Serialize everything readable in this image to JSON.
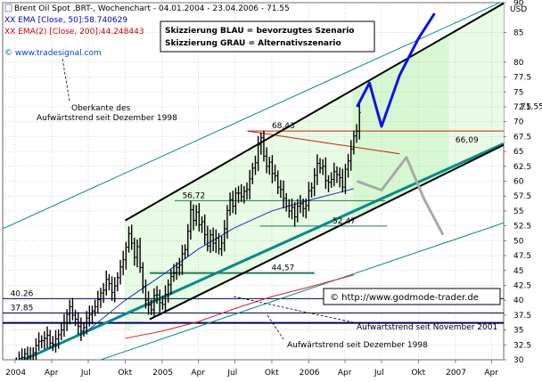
{
  "header": {
    "line1": "Brent Oil Spot ,BRT-, Wochenchart - 04.01.2004 - 23.04.2006 - 71.55",
    "line2": "XX EMA [Close, 50]:58.740629",
    "line3": "XX EMA(2) [Close, 200]:44.248443",
    "watermark": "© www.tradesignal.com"
  },
  "legend": {
    "blau": "Skizzierung BLAU = bevorzugtes Szenario",
    "grau": "Skizzierung GRAU = Alternativszenario"
  },
  "copyright": "© http://www.godmode-trader.de",
  "colors": {
    "background": "#ffffff",
    "channel_fill": "#e8fbe4",
    "scenario_fill": "#d6f8d0",
    "bars": "#000000",
    "ema50": "#2030c0",
    "ema200": "#e02020",
    "teal_trend": "#008b8b",
    "navy": "#000060",
    "darkgreen_line": "#1e7a58",
    "red_line": "#cc2200",
    "blue_scenario": "#1010ee",
    "grey_scenario": "#a8a8a8",
    "header_blue": "#0000cc",
    "header_red": "#cc0000",
    "watermark": "#0044cc"
  },
  "chart_data": {
    "type": "candlestick",
    "title": "Brent Oil Spot ,BRT-, Wochenchart - 04.01.2004 - 23.04.2006 - 71.55",
    "y_unit": "USD",
    "ylim": [
      30,
      90
    ],
    "xlim": [
      "2003-12-01",
      "2007-05-01"
    ],
    "x_ticks": [
      "2004",
      "Apr",
      "Jul",
      "Okt",
      "2005",
      "Apr",
      "Jul",
      "Okt",
      "2006",
      "Apr",
      "Jul",
      "Okt",
      "2007",
      "Apr"
    ],
    "y_ticks": [
      30,
      32.5,
      35,
      37.5,
      40,
      42.5,
      45,
      47.5,
      50,
      52.5,
      55,
      57.5,
      60,
      62.5,
      65,
      67.5,
      70,
      72.5,
      75,
      77.5,
      80,
      85,
      90
    ],
    "last_price": 71.55,
    "weekly_close": [
      29.5,
      30.2,
      30.4,
      31.0,
      30.6,
      30.0,
      31.2,
      32.4,
      33.1,
      33.2,
      33.6,
      34.1,
      32.8,
      32.6,
      33.5,
      34.2,
      35.0,
      36.2,
      37.6,
      38.9,
      37.5,
      36.8,
      35.6,
      34.8,
      35.4,
      37.0,
      37.6,
      38.2,
      38.9,
      40.1,
      41.2,
      41.7,
      43.5,
      42.8,
      41.3,
      42.4,
      43.8,
      45.6,
      46.8,
      48.9,
      51.2,
      49.6,
      47.2,
      49.0,
      45.5,
      42.3,
      40.0,
      39.2,
      38.4,
      40.8,
      40.9,
      39.6,
      39.3,
      41.0,
      42.6,
      44.0,
      44.6,
      45.5,
      45.9,
      47.8,
      48.5,
      51.6,
      55.2,
      53.4,
      54.8,
      52.7,
      53.2,
      51.0,
      49.1,
      51.0,
      49.6,
      50.4,
      48.6,
      49.6,
      52.0,
      55.1,
      56.9,
      55.8,
      58.0,
      58.0,
      57.4,
      58.3,
      58.6,
      60.4,
      62.2,
      63.1,
      66.1,
      67.3,
      64.2,
      62.5,
      63.2,
      61.3,
      60.9,
      59.0,
      58.6,
      57.1,
      55.8,
      55.0,
      55.6,
      54.0,
      55.8,
      56.2,
      55.4,
      55.9,
      58.4,
      58.9,
      61.0,
      63.0,
      62.2,
      62.5,
      60.1,
      59.8,
      60.3,
      61.6,
      61.1,
      60.6,
      59.0,
      62.0,
      63.4,
      65.4,
      67.6,
      68.4,
      71.55
    ],
    "ema50_points": [
      [
        "2004-07-01",
        35.0
      ],
      [
        "2004-10-01",
        40.0
      ],
      [
        "2005-01-01",
        44.2
      ],
      [
        "2005-04-01",
        48.6
      ],
      [
        "2005-07-01",
        52.2
      ],
      [
        "2005-10-01",
        55.0
      ],
      [
        "2006-01-01",
        56.8
      ],
      [
        "2006-04-23",
        58.74
      ]
    ],
    "ema200_points": [
      [
        "2004-10-01",
        33.6
      ],
      [
        "2005-01-01",
        34.8
      ],
      [
        "2005-04-01",
        36.4
      ],
      [
        "2005-07-01",
        38.6
      ],
      [
        "2005-10-01",
        40.6
      ],
      [
        "2006-01-01",
        42.2
      ],
      [
        "2006-04-23",
        44.25
      ]
    ],
    "levels": [
      {
        "value": 68.43,
        "label": "68,43"
      },
      {
        "value": 66.09,
        "label": "66,09"
      },
      {
        "value": 56.72,
        "label": "56,72"
      },
      {
        "value": 52.47,
        "label": "52,47"
      },
      {
        "value": 44.57,
        "label": "44,57"
      },
      {
        "value": 40.26,
        "label": "40.26"
      },
      {
        "value": 37.85,
        "label": "37.85"
      }
    ],
    "trendlines": [
      {
        "name": "Oberkante des Aufwärtstrend seit Dezember 1998",
        "from": [
          "2003-12-01",
          52.0
        ],
        "to": [
          "2007-05-01",
          90.3
        ]
      },
      {
        "name": "Aufwärtstrend seit Dezember 1998",
        "from": [
          "2003-12-01",
          28.4
        ],
        "to": [
          "2007-05-01",
          66.3
        ]
      },
      {
        "name": "Aufwärtstrend seit November 2001",
        "from": [
          "2004-06-01",
          28.6
        ],
        "to": [
          "2007-05-01",
          53.0
        ]
      },
      {
        "name": "Trendkanal oben",
        "from": [
          "2004-10-01",
          53.4
        ],
        "to": [
          "2007-05-01",
          89.9
        ]
      },
      {
        "name": "Trendkanal unten",
        "from": [
          "2004-12-01",
          36.8
        ],
        "to": [
          "2007-05-01",
          66.1
        ]
      }
    ],
    "scenario_blue": [
      [
        "2006-05-01",
        72.5
      ],
      [
        "2006-06-01",
        76.5
      ],
      [
        "2006-07-01",
        69.2
      ],
      [
        "2006-08-15",
        77.8
      ],
      [
        "2006-10-01",
        84.0
      ],
      [
        "2006-11-10",
        88.2
      ]
    ],
    "scenario_grey": [
      [
        "2006-05-01",
        60.0
      ],
      [
        "2006-07-01",
        58.5
      ],
      [
        "2006-09-01",
        64.0
      ],
      [
        "2006-10-15",
        57.0
      ],
      [
        "2006-12-01",
        51.0
      ]
    ],
    "annotations": [
      {
        "text": "Oberkante des",
        "anchor": "upper-left"
      },
      {
        "text": "Aufwärtstrend seit Dezember 1998",
        "anchor": "upper-left"
      },
      {
        "text": "Aufwärtstrend seit November 2001",
        "anchor": "bottom-right"
      },
      {
        "text": "Aufwärtstrend seit Dezember 1998",
        "anchor": "bottom-center"
      }
    ]
  }
}
